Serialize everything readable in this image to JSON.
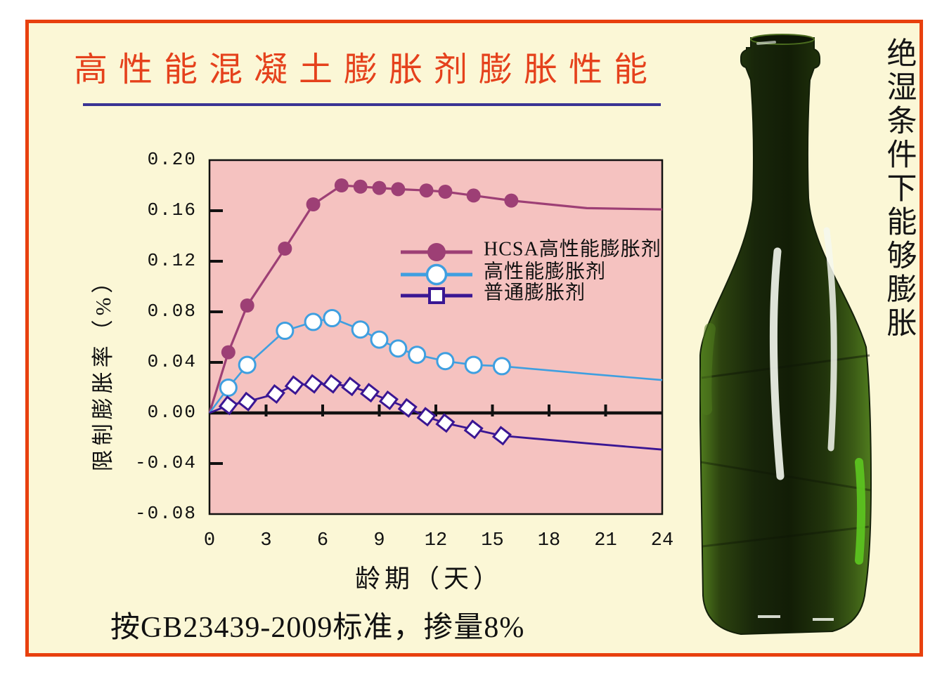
{
  "slide": {
    "page_background": "#ffffff",
    "background": "#fbf7d6",
    "border_color": "#e8400e",
    "title": "高性能混凝土膨胀剂膨胀性能",
    "title_color": "#e5411c",
    "underline_color": "#3a3494",
    "caption": "按GB23439-2009标准，掺量8%",
    "side_note": "绝湿条件下能够膨胀"
  },
  "bottle": {
    "label": "green-glass-bottle",
    "glass_dark": "#121d06",
    "glass_mid": "#2c420f",
    "glass_edge": "#507c1e",
    "glint": "#5cc220",
    "highlight": "#f4f8ef",
    "mouth_dark": "#0e1705"
  },
  "chart_data": {
    "type": "line",
    "title": "",
    "xlabel": "龄期（天）",
    "ylabel": "限制膨胀率（%）",
    "xlim": [
      0,
      24
    ],
    "ylim": [
      -0.08,
      0.2
    ],
    "grid": false,
    "plot_bg": "#f5c2c0",
    "axis_color": "#111111",
    "legend_position": "inside upper-right",
    "x_ticks": [
      0,
      3,
      6,
      9,
      12,
      15,
      18,
      21,
      24
    ],
    "x_tick_labels": [
      "0",
      "3",
      "6",
      "9",
      "12",
      "15",
      "18",
      "21",
      "24"
    ],
    "y_ticks": [
      0.2,
      0.16,
      0.12,
      0.08,
      0.04,
      0.0,
      -0.04,
      -0.08
    ],
    "y_tick_labels": [
      "0.20",
      "0.16",
      "0.12",
      "0.08",
      "0.04",
      "0.00",
      "-0.04",
      "-0.08"
    ],
    "series": [
      {
        "name": "HCSA高性能膨胀剂",
        "color": "#9d3f75",
        "marker": "filled-circle",
        "marker_max_day": 16.5,
        "points": [
          [
            0,
            0
          ],
          [
            1,
            0.048
          ],
          [
            2,
            0.085
          ],
          [
            4,
            0.13
          ],
          [
            5.5,
            0.165
          ],
          [
            7,
            0.18
          ],
          [
            8,
            0.179
          ],
          [
            9,
            0.178
          ],
          [
            10,
            0.177
          ],
          [
            11.5,
            0.176
          ],
          [
            12.5,
            0.175
          ],
          [
            14,
            0.172
          ],
          [
            16,
            0.168
          ],
          [
            20,
            0.162
          ],
          [
            24,
            0.161
          ]
        ]
      },
      {
        "name": "高性能膨胀剂",
        "color": "#3f9fe0",
        "marker": "open-circle",
        "marker_max_day": 16,
        "points": [
          [
            0,
            0
          ],
          [
            1,
            0.02
          ],
          [
            2,
            0.038
          ],
          [
            4,
            0.065
          ],
          [
            5.5,
            0.072
          ],
          [
            6.5,
            0.075
          ],
          [
            8,
            0.066
          ],
          [
            9,
            0.058
          ],
          [
            10,
            0.051
          ],
          [
            11,
            0.046
          ],
          [
            12.5,
            0.041
          ],
          [
            14,
            0.038
          ],
          [
            15.5,
            0.037
          ],
          [
            20,
            0.031
          ],
          [
            24,
            0.026
          ]
        ]
      },
      {
        "name": "普通膨胀剂",
        "color": "#3a1693",
        "marker": "open-square",
        "marker_max_day": 16,
        "points": [
          [
            0,
            0
          ],
          [
            1,
            0.006
          ],
          [
            2,
            0.009
          ],
          [
            3.5,
            0.015
          ],
          [
            4.5,
            0.022
          ],
          [
            5.5,
            0.023
          ],
          [
            6.5,
            0.023
          ],
          [
            7.5,
            0.021
          ],
          [
            8.5,
            0.016
          ],
          [
            9.5,
            0.01
          ],
          [
            10.5,
            0.004
          ],
          [
            11.5,
            -0.003
          ],
          [
            12.5,
            -0.008
          ],
          [
            14,
            -0.013
          ],
          [
            15.5,
            -0.018
          ],
          [
            20,
            -0.024
          ],
          [
            24,
            -0.029
          ]
        ]
      }
    ]
  }
}
